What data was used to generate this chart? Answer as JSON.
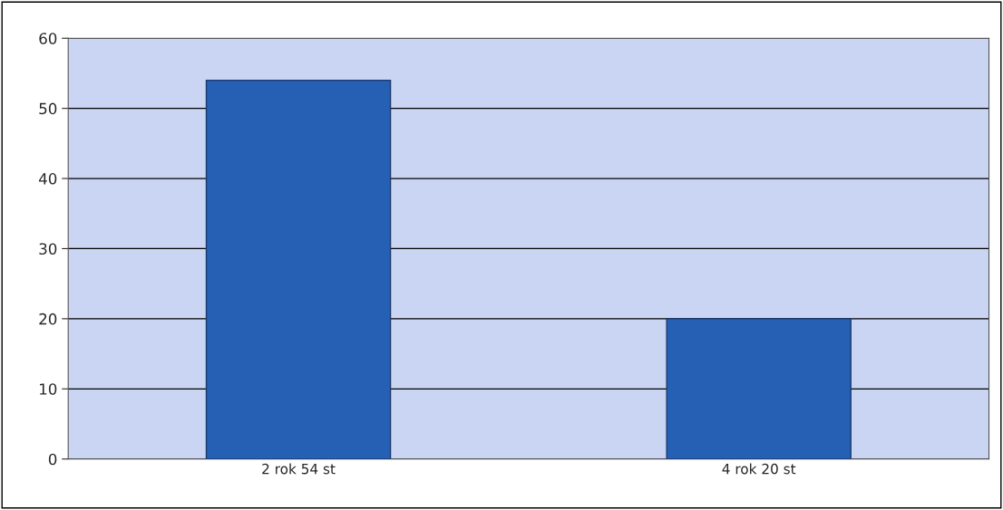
{
  "chart_data": {
    "type": "bar",
    "categories": [
      "2 rok 54 st",
      "4 rok 20 st"
    ],
    "values": [
      54,
      20
    ],
    "color": "#2560b4",
    "ylim": [
      0,
      60
    ],
    "yticks": [
      0,
      10,
      20,
      30,
      40,
      50,
      60
    ],
    "grid": "y",
    "legend": false
  }
}
